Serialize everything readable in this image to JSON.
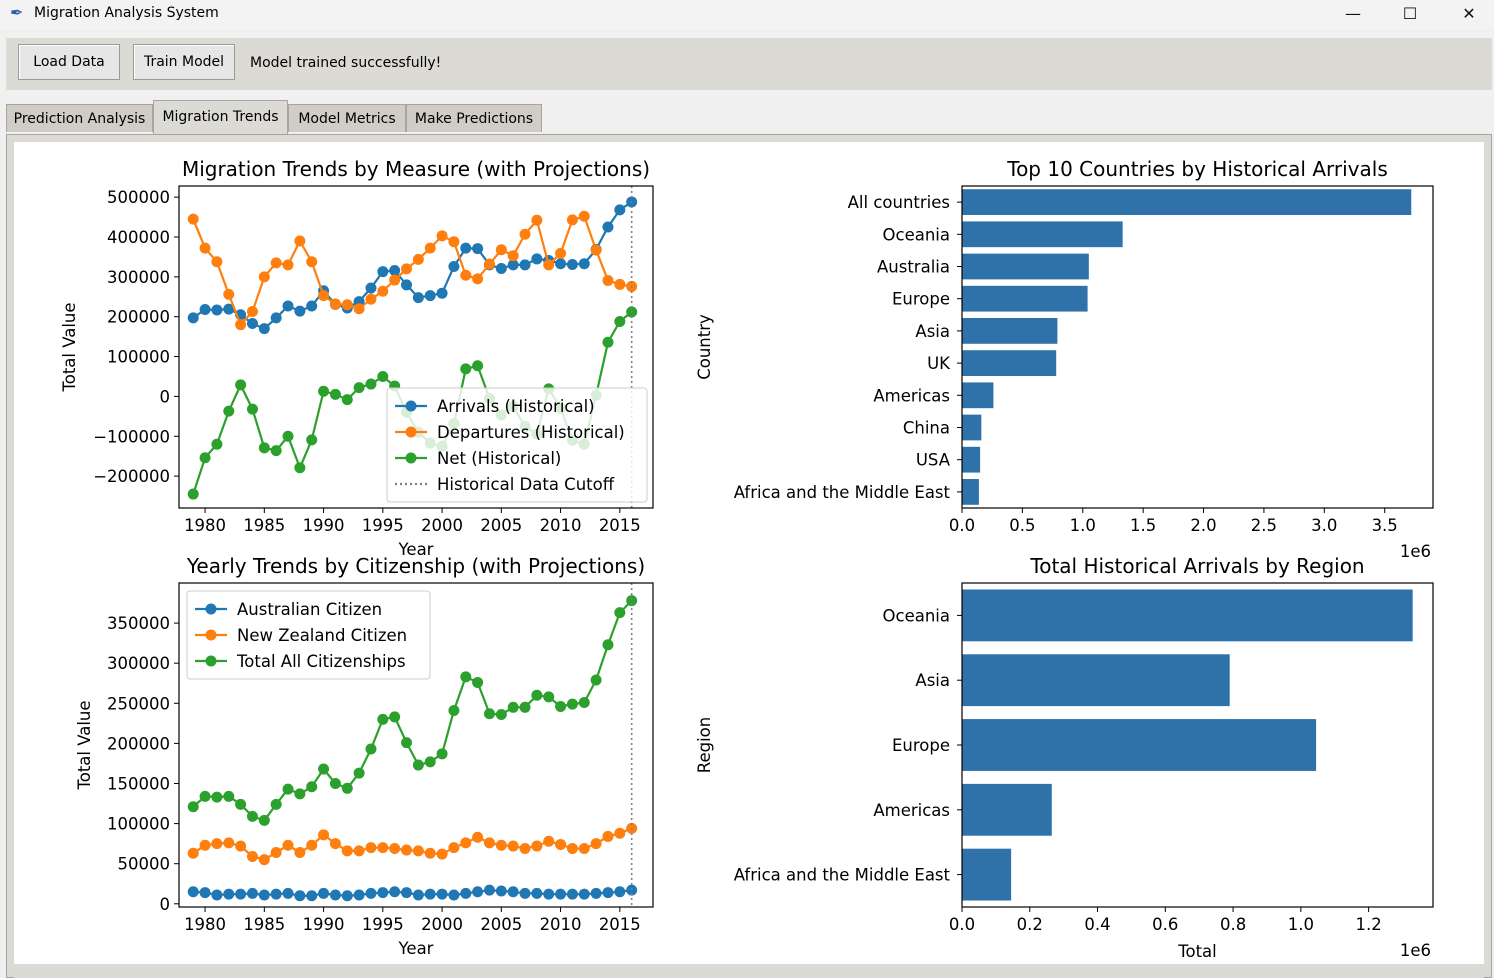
{
  "window": {
    "title": "Migration Analysis System",
    "controls": {
      "minimize": "—",
      "maximize": "☐",
      "close": "✕"
    },
    "icon": "feather-icon"
  },
  "toolbar": {
    "load_label": "Load Data",
    "train_label": "Train Model",
    "status": "Model trained successfully!"
  },
  "tabs": [
    {
      "label": "Prediction Analysis",
      "active": false
    },
    {
      "label": "Migration Trends",
      "active": true
    },
    {
      "label": "Model Metrics",
      "active": false
    },
    {
      "label": "Make Predictions",
      "active": false
    }
  ],
  "colors": {
    "blue": "#1f77b4",
    "orange": "#ff7f0e",
    "green": "#2ca02c",
    "bar": "#2f72a9",
    "cutoff": "#808080"
  },
  "chart_data": [
    {
      "type": "line",
      "title": "Migration Trends by Measure (with Projections)",
      "xlabel": "Year",
      "ylabel": "Total Value",
      "xlim": [
        1977.8,
        2017.8
      ],
      "ylim": [
        -280000,
        528000
      ],
      "xticks": [
        1980,
        1985,
        1990,
        1995,
        2000,
        2005,
        2010,
        2015
      ],
      "yticks": [
        -200000,
        -100000,
        0,
        100000,
        200000,
        300000,
        400000,
        500000
      ],
      "ytick_labels": [
        "−200000",
        "−100000",
        "0",
        "100000",
        "200000",
        "300000",
        "400000",
        "500000"
      ],
      "cutoff_x": 2016,
      "legend_position": "lower-right",
      "x": [
        1979,
        1980,
        1981,
        1982,
        1983,
        1984,
        1985,
        1986,
        1987,
        1988,
        1989,
        1990,
        1991,
        1992,
        1993,
        1994,
        1995,
        1996,
        1997,
        1998,
        1999,
        2000,
        2001,
        2002,
        2003,
        2004,
        2005,
        2006,
        2007,
        2008,
        2009,
        2010,
        2011,
        2012,
        2013,
        2014,
        2015,
        2016
      ],
      "series": [
        {
          "name": "Arrivals (Historical)",
          "color": "#1f77b4",
          "values": [
            197000,
            218000,
            217000,
            219000,
            205000,
            183000,
            170000,
            197000,
            227000,
            214000,
            227000,
            265000,
            231000,
            222000,
            238000,
            272000,
            313000,
            316000,
            280000,
            248000,
            253000,
            259000,
            326000,
            372000,
            371000,
            330000,
            321000,
            330000,
            330000,
            345000,
            341000,
            333000,
            331000,
            333000,
            369000,
            425000,
            468000,
            488000
          ]
        },
        {
          "name": "Departures (Historical)",
          "color": "#ff7f0e",
          "values": [
            445000,
            372000,
            338000,
            256000,
            180000,
            213000,
            300000,
            335000,
            330000,
            390000,
            338000,
            253000,
            232000,
            230000,
            220000,
            244000,
            264000,
            292000,
            320000,
            344000,
            372000,
            403000,
            388000,
            304000,
            295000,
            332000,
            368000,
            353000,
            407000,
            442000,
            330000,
            359000,
            443000,
            452000,
            367000,
            291000,
            281000,
            276000
          ]
        },
        {
          "name": "Net (Historical)",
          "color": "#2ca02c",
          "values": [
            -245000,
            -154000,
            -120000,
            -37000,
            29000,
            -32000,
            -129000,
            -136000,
            -100000,
            -179000,
            -109000,
            13000,
            5000,
            -8000,
            22000,
            31000,
            50000,
            26000,
            -40000,
            -90000,
            -117000,
            -125000,
            -68000,
            69000,
            77000,
            -5000,
            -47000,
            -25000,
            -75000,
            -95000,
            19000,
            -30000,
            -110000,
            -120000,
            3000,
            136000,
            188000,
            212000
          ]
        }
      ],
      "cutoff_label": "Historical Data Cutoff"
    },
    {
      "type": "bar",
      "orientation": "horizontal",
      "title": "Top 10 Countries by Historical Arrivals",
      "xlabel": "",
      "ylabel": "Country",
      "xlim": [
        0,
        3.9
      ],
      "xticks": [
        0.0,
        0.5,
        1.0,
        1.5,
        2.0,
        2.5,
        3.0,
        3.5
      ],
      "xtick_labels": [
        "0.0",
        "0.5",
        "1.0",
        "1.5",
        "2.0",
        "2.5",
        "3.0",
        "3.5"
      ],
      "offset_label": "1e6",
      "categories": [
        "All countries",
        "Oceania",
        "Australia",
        "Europe",
        "Asia",
        "UK",
        "Americas",
        "China",
        "USA",
        "Africa and the Middle East"
      ],
      "values": [
        3.72,
        1.33,
        1.05,
        1.04,
        0.79,
        0.78,
        0.26,
        0.16,
        0.15,
        0.14
      ]
    },
    {
      "type": "line",
      "title": "Yearly Trends by Citizenship (with Projections)",
      "xlabel": "Year",
      "ylabel": "Total Value",
      "xlim": [
        1977.8,
        2017.8
      ],
      "ylim": [
        -4000,
        400000
      ],
      "xticks": [
        1980,
        1985,
        1990,
        1995,
        2000,
        2005,
        2010,
        2015
      ],
      "yticks": [
        0,
        50000,
        100000,
        150000,
        200000,
        250000,
        300000,
        350000
      ],
      "ytick_labels": [
        "0",
        "50000",
        "100000",
        "150000",
        "200000",
        "250000",
        "300000",
        "350000"
      ],
      "cutoff_x": 2016,
      "legend_position": "upper-left",
      "x": [
        1979,
        1980,
        1981,
        1982,
        1983,
        1984,
        1985,
        1986,
        1987,
        1988,
        1989,
        1990,
        1991,
        1992,
        1993,
        1994,
        1995,
        1996,
        1997,
        1998,
        1999,
        2000,
        2001,
        2002,
        2003,
        2004,
        2005,
        2006,
        2007,
        2008,
        2009,
        2010,
        2011,
        2012,
        2013,
        2014,
        2015,
        2016
      ],
      "series": [
        {
          "name": "Australian Citizen",
          "color": "#1f77b4",
          "values": [
            15000,
            14000,
            11000,
            12000,
            12000,
            13000,
            11000,
            12000,
            13000,
            10000,
            10000,
            13000,
            11000,
            10000,
            11000,
            13000,
            14000,
            15000,
            14000,
            11000,
            12000,
            12000,
            11000,
            13000,
            15000,
            17000,
            16000,
            15000,
            13000,
            13000,
            12000,
            12000,
            12000,
            12000,
            13000,
            14000,
            15000,
            17000
          ]
        },
        {
          "name": "New Zealand Citizen",
          "color": "#ff7f0e",
          "values": [
            63000,
            73000,
            75000,
            76000,
            72000,
            59000,
            55000,
            64000,
            73000,
            64000,
            73000,
            86000,
            75000,
            66000,
            66000,
            70000,
            70000,
            69000,
            67000,
            66000,
            63000,
            62000,
            70000,
            76000,
            83000,
            76000,
            73000,
            72000,
            69000,
            72000,
            78000,
            74000,
            69000,
            69000,
            75000,
            84000,
            88000,
            94000
          ]
        },
        {
          "name": "Total All Citizenships",
          "color": "#2ca02c",
          "values": [
            121000,
            134000,
            133000,
            134000,
            124000,
            109000,
            104000,
            124000,
            143000,
            137000,
            146000,
            168000,
            150000,
            144000,
            163000,
            193000,
            230000,
            233000,
            201000,
            173000,
            177000,
            187000,
            241000,
            283000,
            276000,
            237000,
            236000,
            245000,
            245000,
            260000,
            258000,
            246000,
            249000,
            251000,
            279000,
            323000,
            363000,
            378000
          ]
        }
      ]
    },
    {
      "type": "bar",
      "orientation": "horizontal",
      "title": "Total Historical Arrivals by Region",
      "xlabel": "Total",
      "ylabel": "Region",
      "xlim": [
        0,
        1.39
      ],
      "xticks": [
        0.0,
        0.2,
        0.4,
        0.6,
        0.8,
        1.0,
        1.2
      ],
      "xtick_labels": [
        "0.0",
        "0.2",
        "0.4",
        "0.6",
        "0.8",
        "1.0",
        "1.2"
      ],
      "offset_label": "1e6",
      "categories": [
        "Oceania",
        "Asia",
        "Europe",
        "Americas",
        "Africa and the Middle East"
      ],
      "values": [
        1.33,
        0.79,
        1.045,
        0.265,
        0.145
      ]
    }
  ]
}
